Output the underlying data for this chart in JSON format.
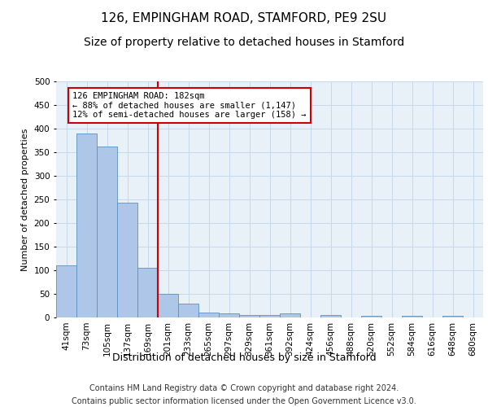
{
  "title1": "126, EMPINGHAM ROAD, STAMFORD, PE9 2SU",
  "title2": "Size of property relative to detached houses in Stamford",
  "xlabel": "Distribution of detached houses by size in Stamford",
  "ylabel": "Number of detached properties",
  "categories": [
    "41sqm",
    "73sqm",
    "105sqm",
    "137sqm",
    "169sqm",
    "201sqm",
    "233sqm",
    "265sqm",
    "297sqm",
    "329sqm",
    "361sqm",
    "392sqm",
    "424sqm",
    "456sqm",
    "488sqm",
    "520sqm",
    "552sqm",
    "584sqm",
    "616sqm",
    "648sqm",
    "680sqm"
  ],
  "values": [
    110,
    390,
    362,
    243,
    105,
    50,
    30,
    10,
    8,
    5,
    5,
    8,
    0,
    5,
    0,
    3,
    0,
    3,
    0,
    3,
    0
  ],
  "bar_color": "#aec6e8",
  "bar_edge_color": "#5a90c0",
  "grid_color": "#c8d8ec",
  "background_color": "#e8f0f8",
  "vline_color": "#cc0000",
  "annotation_text": "126 EMPINGHAM ROAD: 182sqm\n← 88% of detached houses are smaller (1,147)\n12% of semi-detached houses are larger (158) →",
  "annotation_box_color": "#cc0000",
  "ylim": [
    0,
    500
  ],
  "yticks": [
    0,
    50,
    100,
    150,
    200,
    250,
    300,
    350,
    400,
    450,
    500
  ],
  "footer1": "Contains HM Land Registry data © Crown copyright and database right 2024.",
  "footer2": "Contains public sector information licensed under the Open Government Licence v3.0.",
  "title1_fontsize": 11,
  "title2_fontsize": 10,
  "xlabel_fontsize": 9,
  "ylabel_fontsize": 8,
  "tick_fontsize": 7.5,
  "footer_fontsize": 7,
  "annot_fontsize": 7.5
}
